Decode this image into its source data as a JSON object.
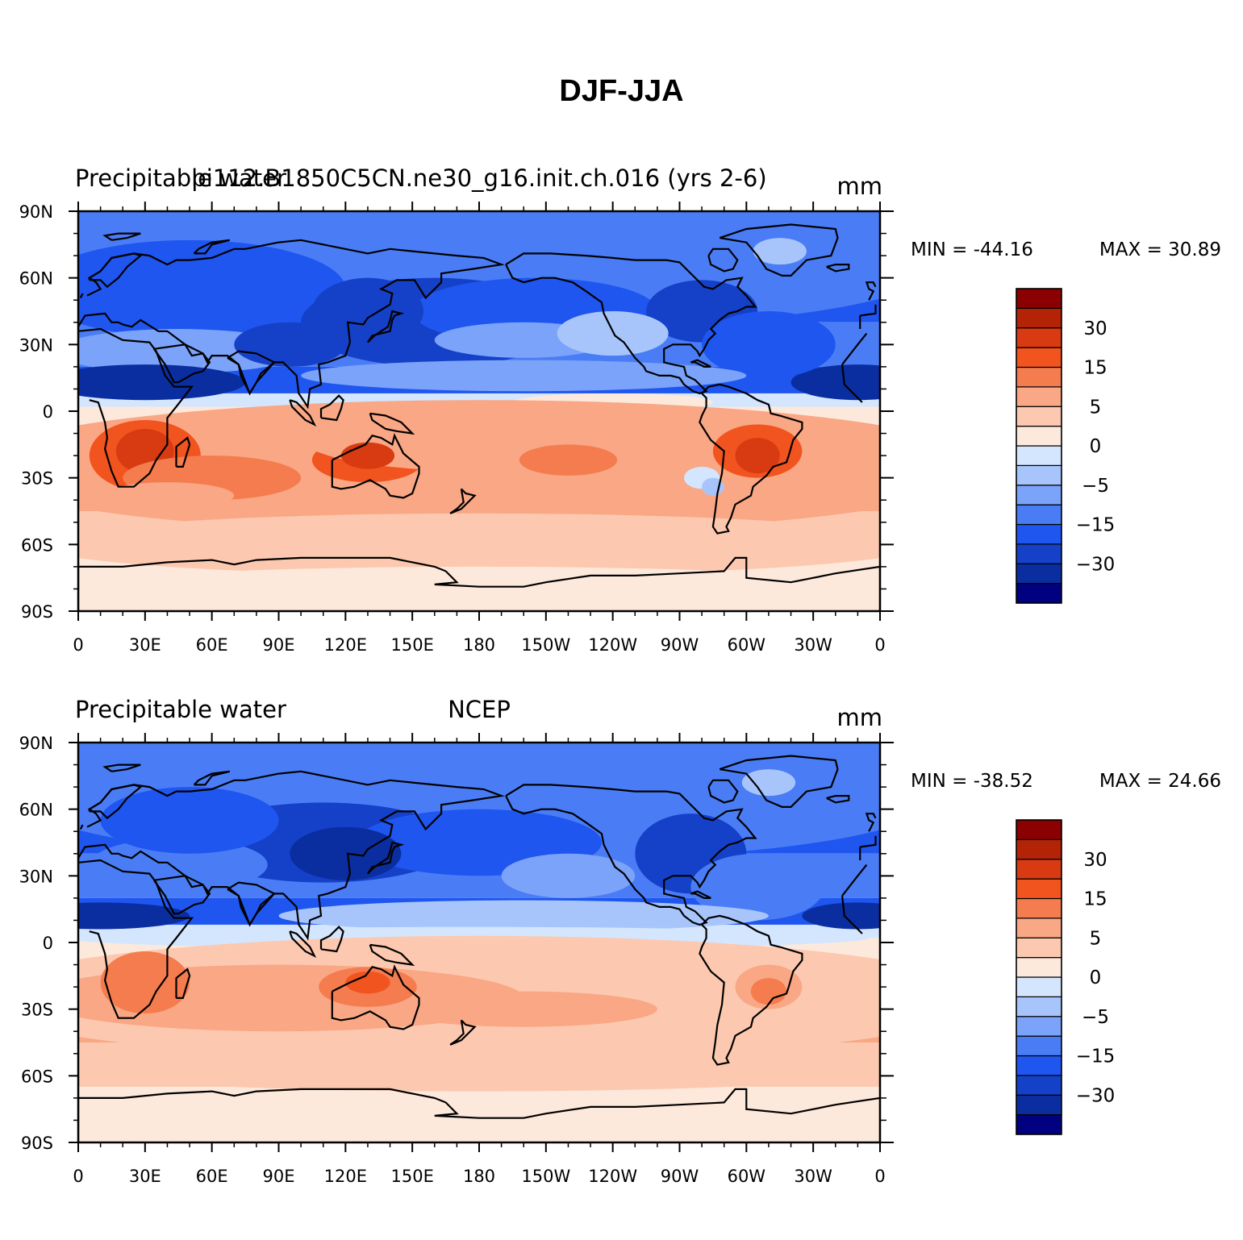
{
  "figure_title": "DJF-JJA",
  "colors": {
    "levels": [
      "#000080",
      "#0a2ea0",
      "#1541c8",
      "#1f56f0",
      "#4a7df5",
      "#7ba3f9",
      "#a8c5fb",
      "#d4e6fd",
      "#fde9dc",
      "#fcc9b0",
      "#f9a785",
      "#f47c4e",
      "#f1541f",
      "#d83b11",
      "#b32406",
      "#8b0000"
    ],
    "land_outline": "#000000"
  },
  "colorbar_labels": [
    "30",
    "15",
    "5",
    "0",
    "-5",
    "-15",
    "-30"
  ],
  "x_ticks": [
    "0",
    "30E",
    "60E",
    "90E",
    "120E",
    "150E",
    "180",
    "150W",
    "120W",
    "90W",
    "60W",
    "30W",
    "0"
  ],
  "y_ticks": [
    "90N",
    "60N",
    "30N",
    "0",
    "30S",
    "60S",
    "90S"
  ],
  "panels": [
    {
      "left_title": "Precipitable water",
      "center_title": "pi112.B1850C5CN.ne30_g16.init.ch.016 (yrs 2-6)",
      "units": "mm",
      "min_text": "MIN = -44.16",
      "max_text": "MAX =   30.89"
    },
    {
      "left_title": "Precipitable water",
      "center_title": "NCEP",
      "units": "mm",
      "min_text": "MIN = -38.52",
      "max_text": "MAX =   24.66"
    }
  ],
  "chart_data": [
    {
      "type": "heatmap",
      "title": "DJF-JJA",
      "subtitle": "pi112.B1850C5CN.ne30_g16.init.ch.016 (yrs 2-6)",
      "variable": "Precipitable water",
      "units": "mm",
      "min": -44.16,
      "max": 30.89,
      "xlim": [
        0,
        360
      ],
      "ylim": [
        -90,
        90
      ],
      "contour_levels": [
        -40,
        -30,
        -25,
        -20,
        -15,
        -10,
        -5,
        -2,
        0,
        2,
        5,
        10,
        15,
        20,
        30,
        40
      ],
      "x_ticks": [
        "0",
        "30E",
        "60E",
        "90E",
        "120E",
        "150E",
        "180",
        "150W",
        "120W",
        "90W",
        "60W",
        "30W",
        "0"
      ],
      "y_ticks": [
        "90N",
        "60N",
        "30N",
        "0",
        "30S",
        "60S",
        "90S"
      ]
    },
    {
      "type": "heatmap",
      "title": "DJF-JJA",
      "subtitle": "NCEP",
      "variable": "Precipitable water",
      "units": "mm",
      "min": -38.52,
      "max": 24.66,
      "xlim": [
        0,
        360
      ],
      "ylim": [
        -90,
        90
      ],
      "contour_levels": [
        -40,
        -30,
        -25,
        -20,
        -15,
        -10,
        -5,
        -2,
        0,
        2,
        5,
        10,
        15,
        20,
        30,
        40
      ],
      "x_ticks": [
        "0",
        "30E",
        "60E",
        "90E",
        "120E",
        "150E",
        "180",
        "150W",
        "120W",
        "90W",
        "60W",
        "30W",
        "0"
      ],
      "y_ticks": [
        "90N",
        "60N",
        "30N",
        "0",
        "30S",
        "60S",
        "90S"
      ]
    }
  ]
}
